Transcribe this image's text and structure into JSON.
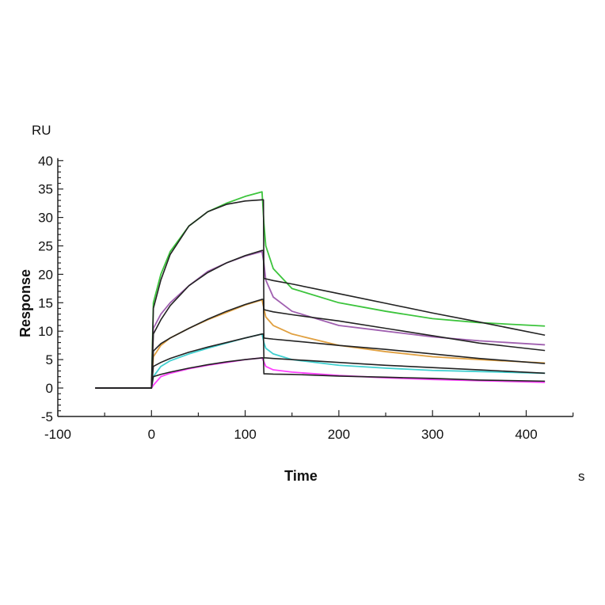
{
  "chart_data": {
    "type": "line",
    "xlabel": "Time",
    "xunit": "s",
    "ylabel": "Response",
    "yunit": "RU",
    "xlim": [
      -100,
      450
    ],
    "ylim": [
      -5,
      40
    ],
    "xticks": [
      -100,
      0,
      100,
      200,
      300,
      400
    ],
    "yticks": [
      -5,
      0,
      5,
      10,
      15,
      20,
      25,
      30,
      35,
      40
    ],
    "grid": false,
    "legend": "none",
    "x": [
      -60,
      -30,
      -1,
      0,
      2,
      10,
      20,
      40,
      60,
      80,
      100,
      118,
      120,
      122,
      130,
      150,
      200,
      250,
      300,
      350,
      420
    ],
    "series": [
      {
        "color": "#3cc43c",
        "kind": "measured",
        "values": [
          0,
          0,
          0,
          0,
          15,
          20,
          24,
          28.5,
          31,
          32.5,
          33.7,
          34.5,
          29,
          25,
          21,
          17.5,
          15,
          13.5,
          12.2,
          11.5,
          10.9
        ]
      },
      {
        "color": "#a060b0",
        "kind": "measured",
        "values": [
          0,
          0,
          0,
          0,
          10.5,
          13,
          15,
          18,
          20.5,
          22,
          23.2,
          24,
          22,
          19,
          16,
          13.5,
          11,
          10,
          9,
          8.3,
          7.6
        ]
      },
      {
        "color": "#e0a040",
        "kind": "measured",
        "values": [
          0,
          0,
          0,
          0,
          5.5,
          7.5,
          8.8,
          10.5,
          12,
          13.3,
          14.6,
          15.5,
          14,
          12.5,
          11,
          9.5,
          7.5,
          6.4,
          5.5,
          5,
          4.4
        ]
      },
      {
        "color": "#40d0d0",
        "kind": "measured",
        "values": [
          0,
          0,
          0,
          0,
          2,
          3.8,
          4.8,
          6,
          7,
          7.9,
          8.8,
          9.5,
          8,
          7,
          6,
          5,
          4,
          3.5,
          3.1,
          2.9,
          2.6
        ]
      },
      {
        "color": "#ff40ff",
        "kind": "measured",
        "values": [
          0,
          0,
          0,
          0,
          0.5,
          2,
          2.6,
          3.4,
          4,
          4.5,
          5,
          5.3,
          4.6,
          3.8,
          3.2,
          2.8,
          2.2,
          1.8,
          1.5,
          1.3,
          1.0
        ]
      },
      {
        "color": "#222222",
        "kind": "fit",
        "values": [
          0,
          0,
          0,
          0,
          14,
          19,
          23.5,
          28.5,
          31,
          32.3,
          32.9,
          33.1,
          19.3,
          19.2,
          18.9,
          18.3,
          16.6,
          14.9,
          13.2,
          11.6,
          9.3
        ]
      },
      {
        "color": "#222222",
        "kind": "fit",
        "values": [
          0,
          0,
          0,
          0,
          9.5,
          12,
          14.5,
          18,
          20.3,
          22,
          23.3,
          24.2,
          13.8,
          13.7,
          13.4,
          12.9,
          11.8,
          10.5,
          9.2,
          7.9,
          6.6
        ]
      },
      {
        "color": "#222222",
        "kind": "fit",
        "values": [
          0,
          0,
          0,
          0,
          6.5,
          7.8,
          8.8,
          10.5,
          12.1,
          13.5,
          14.7,
          15.6,
          8.8,
          8.75,
          8.6,
          8.3,
          7.5,
          6.8,
          6,
          5.2,
          4.3
        ]
      },
      {
        "color": "#222222",
        "kind": "fit",
        "values": [
          0,
          0,
          0,
          0,
          3.8,
          4.5,
          5.2,
          6.3,
          7.2,
          8,
          8.8,
          9.5,
          5.3,
          5.3,
          5.2,
          5,
          4.5,
          4,
          3.6,
          3.2,
          2.6
        ]
      },
      {
        "color": "#222222",
        "kind": "fit",
        "values": [
          0,
          0,
          0,
          0,
          2,
          2.4,
          2.8,
          3.5,
          4.1,
          4.6,
          5,
          5.3,
          2.5,
          2.5,
          2.45,
          2.4,
          2.1,
          1.9,
          1.7,
          1.4,
          1.2
        ]
      }
    ]
  }
}
